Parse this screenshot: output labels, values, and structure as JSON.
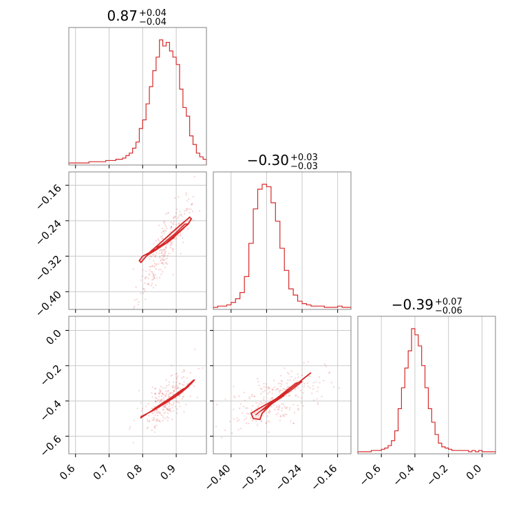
{
  "colors": {
    "accent": "#d62728",
    "grid": "#c8c8c8",
    "frame": "#808080"
  },
  "chart_data": [
    {
      "type": "histogram",
      "panel": "1-1",
      "title_main": "0.87",
      "title_sup": "+0.04",
      "title_sub": "−0.04",
      "xlim": [
        0.58,
        0.99
      ],
      "grid": true,
      "x_ticks": [
        0.6,
        0.7,
        0.8,
        0.9
      ],
      "bin_edges": [
        0.58,
        0.59,
        0.6,
        0.61,
        0.62,
        0.63,
        0.64,
        0.65,
        0.66,
        0.67,
        0.68,
        0.69,
        0.7,
        0.71,
        0.72,
        0.73,
        0.74,
        0.75,
        0.76,
        0.77,
        0.78,
        0.79,
        0.8,
        0.81,
        0.82,
        0.83,
        0.84,
        0.85,
        0.86,
        0.87,
        0.88,
        0.89,
        0.9,
        0.91,
        0.92,
        0.93,
        0.94,
        0.95,
        0.96,
        0.97,
        0.98,
        0.99
      ],
      "counts": [
        0,
        0,
        0,
        0,
        0,
        0,
        1,
        1,
        1,
        1,
        1,
        2,
        2,
        2,
        3,
        3,
        4,
        6,
        8,
        12,
        17,
        28,
        35,
        48,
        62,
        75,
        86,
        100,
        95,
        98,
        91,
        86,
        80,
        60,
        45,
        38,
        22,
        15,
        8,
        5,
        3
      ]
    },
    {
      "type": "histogram",
      "panel": "2-2",
      "title_main": "−0.30",
      "title_sup": "+0.03",
      "title_sub": "−0.03",
      "xlim": [
        -0.44,
        -0.13
      ],
      "grid": true,
      "bin_edges": [
        -0.44,
        -0.43,
        -0.42,
        -0.41,
        -0.4,
        -0.39,
        -0.38,
        -0.37,
        -0.36,
        -0.35,
        -0.34,
        -0.33,
        -0.32,
        -0.31,
        -0.3,
        -0.29,
        -0.28,
        -0.27,
        -0.26,
        -0.25,
        -0.24,
        -0.23,
        -0.22,
        -0.21,
        -0.2,
        -0.19,
        -0.18,
        -0.17,
        -0.16,
        -0.15,
        -0.14,
        -0.13
      ],
      "counts": [
        0,
        1,
        1,
        2,
        4,
        7,
        12,
        25,
        52,
        80,
        96,
        100,
        98,
        85,
        70,
        48,
        30,
        15,
        10,
        5,
        3,
        2,
        1,
        1,
        1,
        0,
        0,
        0,
        1,
        0,
        0
      ]
    },
    {
      "type": "histogram",
      "panel": "3-3",
      "title_main": "−0.39",
      "title_sup": "+0.07",
      "title_sub": "−0.06",
      "xlim": [
        -0.74,
        0.08
      ],
      "grid": true,
      "x_ticks": [
        -0.6,
        -0.4,
        -0.2,
        0.0
      ],
      "bin_edges": [
        -0.74,
        -0.72,
        -0.7,
        -0.68,
        -0.66,
        -0.64,
        -0.62,
        -0.6,
        -0.58,
        -0.56,
        -0.54,
        -0.52,
        -0.5,
        -0.48,
        -0.46,
        -0.44,
        -0.42,
        -0.4,
        -0.38,
        -0.36,
        -0.34,
        -0.32,
        -0.3,
        -0.28,
        -0.26,
        -0.24,
        -0.22,
        -0.2,
        -0.18,
        -0.16,
        -0.14,
        -0.12,
        -0.1,
        -0.08,
        -0.06,
        -0.04,
        -0.02,
        0.0,
        0.02,
        0.04,
        0.06,
        0.08
      ],
      "counts": [
        0,
        0,
        0,
        0,
        1,
        1,
        1,
        2,
        3,
        5,
        9,
        17,
        35,
        52,
        68,
        82,
        100,
        95,
        86,
        70,
        52,
        35,
        24,
        14,
        7,
        4,
        3,
        2,
        1,
        1,
        1,
        1,
        1,
        0,
        1,
        0,
        1,
        0,
        0,
        0,
        0
      ]
    },
    {
      "type": "scatter-contour",
      "panel": "2-1",
      "xlim": [
        0.58,
        0.99
      ],
      "ylim": [
        -0.44,
        -0.13
      ],
      "grid": true,
      "y_ticks": [
        -0.16,
        -0.24,
        -0.32,
        -0.4
      ],
      "contour_levels": [
        [
          [
            0.79,
            -0.33
          ],
          [
            0.8,
            -0.32
          ],
          [
            0.83,
            -0.308
          ],
          [
            0.87,
            -0.29
          ],
          [
            0.9,
            -0.27
          ],
          [
            0.935,
            -0.248
          ],
          [
            0.945,
            -0.236
          ],
          [
            0.94,
            -0.232
          ],
          [
            0.92,
            -0.245
          ],
          [
            0.885,
            -0.268
          ],
          [
            0.85,
            -0.292
          ],
          [
            0.82,
            -0.312
          ],
          [
            0.795,
            -0.334
          ]
        ],
        [
          [
            0.81,
            -0.32
          ],
          [
            0.84,
            -0.306
          ],
          [
            0.88,
            -0.286
          ],
          [
            0.915,
            -0.262
          ],
          [
            0.935,
            -0.247
          ],
          [
            0.925,
            -0.248
          ],
          [
            0.895,
            -0.27
          ],
          [
            0.86,
            -0.292
          ],
          [
            0.825,
            -0.313
          ]
        ],
        [
          [
            0.84,
            -0.3
          ],
          [
            0.87,
            -0.29
          ],
          [
            0.895,
            -0.278
          ],
          [
            0.88,
            -0.285
          ],
          [
            0.85,
            -0.3
          ]
        ]
      ]
    },
    {
      "type": "scatter-contour",
      "panel": "3-1",
      "xlim": [
        0.58,
        0.99
      ],
      "ylim": [
        -0.7,
        0.08
      ],
      "grid": true,
      "x_ticks": [
        0.6,
        0.7,
        0.8,
        0.9
      ],
      "y_ticks": [
        0.0,
        -0.2,
        -0.4,
        -0.6
      ],
      "contour_levels": [
        [
          [
            0.795,
            -0.49
          ],
          [
            0.83,
            -0.455
          ],
          [
            0.87,
            -0.41
          ],
          [
            0.91,
            -0.36
          ],
          [
            0.935,
            -0.32
          ],
          [
            0.955,
            -0.28
          ],
          [
            0.95,
            -0.285
          ],
          [
            0.925,
            -0.33
          ],
          [
            0.895,
            -0.375
          ],
          [
            0.855,
            -0.425
          ],
          [
            0.815,
            -0.47
          ],
          [
            0.795,
            -0.495
          ]
        ],
        [
          [
            0.82,
            -0.465
          ],
          [
            0.86,
            -0.42
          ],
          [
            0.9,
            -0.37
          ],
          [
            0.93,
            -0.325
          ],
          [
            0.92,
            -0.332
          ],
          [
            0.885,
            -0.38
          ],
          [
            0.845,
            -0.43
          ]
        ],
        [
          [
            0.85,
            -0.43
          ],
          [
            0.88,
            -0.395
          ],
          [
            0.9,
            -0.37
          ],
          [
            0.885,
            -0.388
          ],
          [
            0.86,
            -0.42
          ]
        ]
      ]
    },
    {
      "type": "scatter-contour",
      "panel": "3-2",
      "xlim": [
        -0.44,
        -0.13
      ],
      "ylim": [
        -0.7,
        0.08
      ],
      "grid": true,
      "x_ticks": [
        -0.4,
        -0.32,
        -0.24,
        -0.16
      ],
      "contour_levels": [
        [
          [
            -0.35,
            -0.5
          ],
          [
            -0.355,
            -0.47
          ],
          [
            -0.335,
            -0.44
          ],
          [
            -0.3,
            -0.39
          ],
          [
            -0.265,
            -0.33
          ],
          [
            -0.24,
            -0.28
          ],
          [
            -0.22,
            -0.24
          ],
          [
            -0.225,
            -0.25
          ],
          [
            -0.255,
            -0.31
          ],
          [
            -0.28,
            -0.36
          ],
          [
            -0.31,
            -0.42
          ],
          [
            -0.33,
            -0.47
          ],
          [
            -0.335,
            -0.505
          ]
        ],
        [
          [
            -0.345,
            -0.48
          ],
          [
            -0.33,
            -0.45
          ],
          [
            -0.3,
            -0.4
          ],
          [
            -0.265,
            -0.34
          ],
          [
            -0.24,
            -0.29
          ],
          [
            -0.255,
            -0.3
          ],
          [
            -0.285,
            -0.36
          ],
          [
            -0.32,
            -0.43
          ]
        ],
        [
          [
            -0.335,
            -0.46
          ],
          [
            -0.31,
            -0.42
          ],
          [
            -0.28,
            -0.37
          ],
          [
            -0.295,
            -0.385
          ],
          [
            -0.32,
            -0.44
          ]
        ]
      ]
    }
  ]
}
